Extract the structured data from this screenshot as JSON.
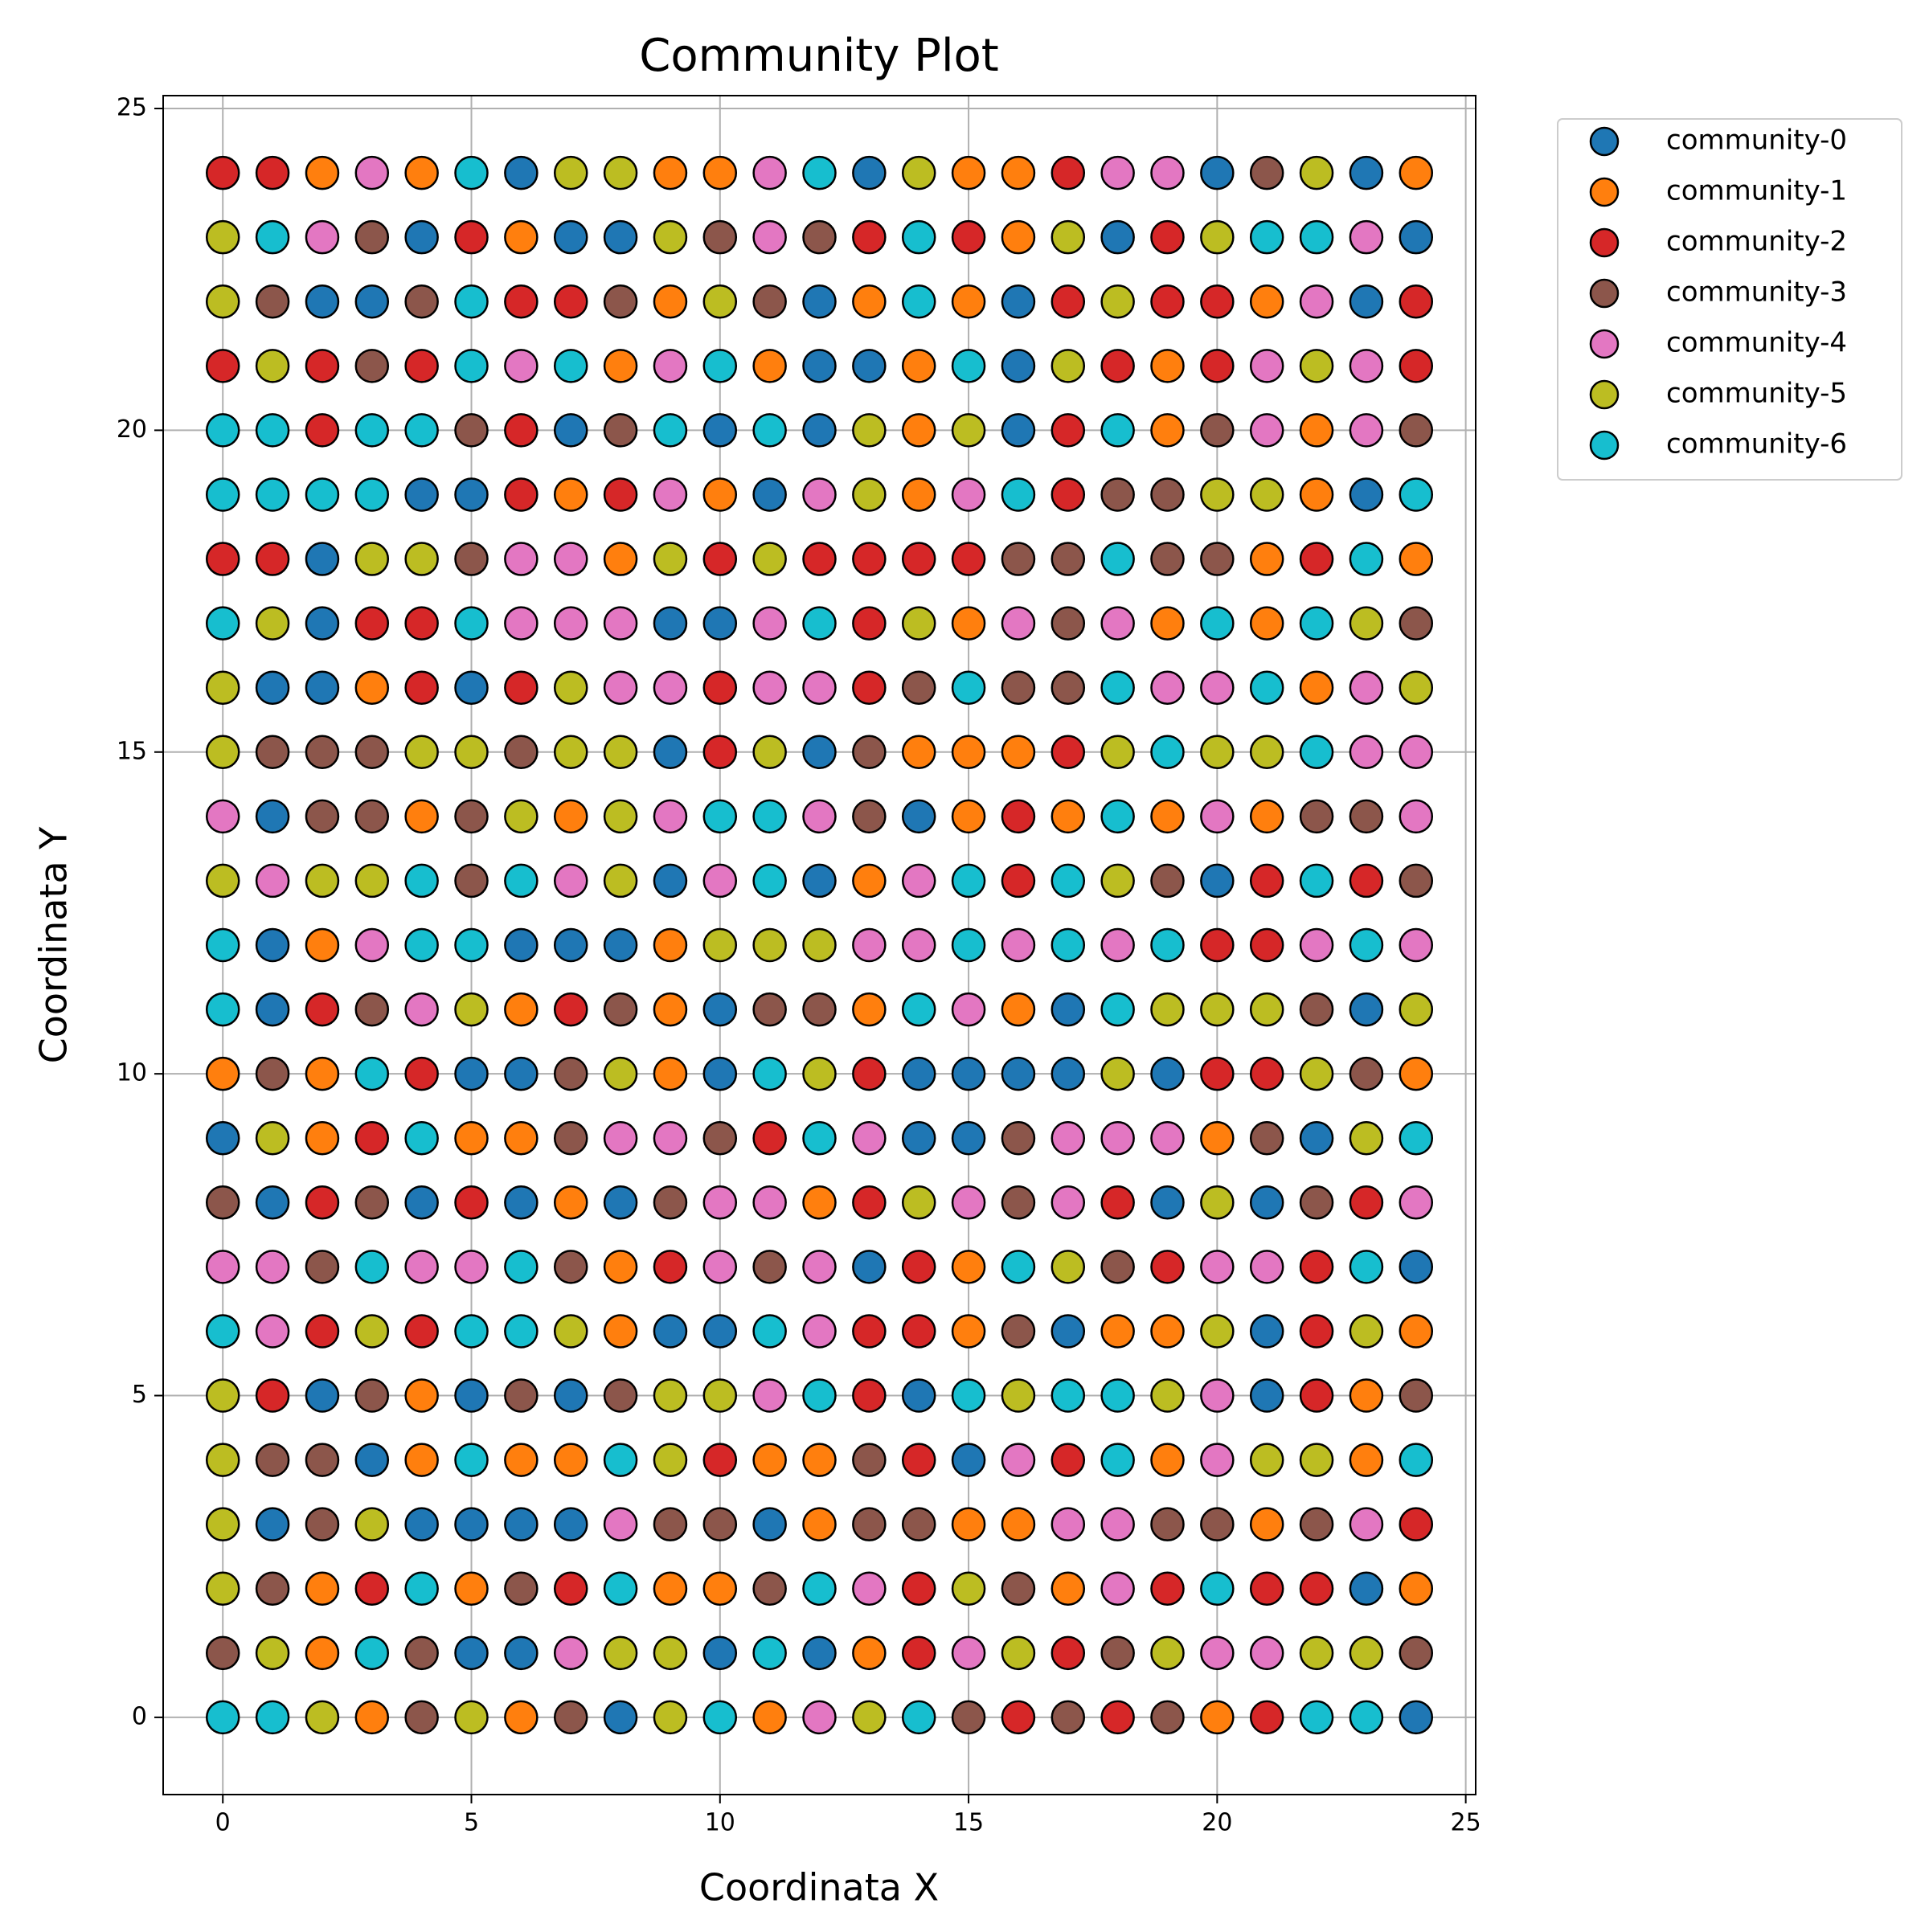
{
  "chart_data": {
    "type": "scatter",
    "title": "Community Plot",
    "x_label": "Coordinata X",
    "y_label": "Coordinata Y",
    "xlim": [
      -1.2,
      25.2
    ],
    "ylim": [
      -1.2,
      25.2
    ],
    "xticks": [
      0,
      5,
      10,
      15,
      20,
      25
    ],
    "yticks": [
      0,
      5,
      10,
      15,
      20,
      25
    ],
    "grid": true,
    "legend": "outside-upper-right",
    "series": [
      {
        "name": "community-0",
        "color": "#1f77b4",
        "x": [
          6,
          13,
          20,
          23,
          4,
          7,
          8,
          18,
          24,
          2,
          3,
          12,
          16,
          23,
          12,
          13,
          16,
          7,
          10,
          12,
          16,
          4,
          5,
          11,
          23,
          2,
          2,
          9,
          10,
          1,
          2,
          5,
          9,
          12,
          1,
          14,
          9,
          12,
          20,
          1,
          6,
          7,
          8,
          1,
          10,
          17,
          23,
          5,
          6,
          10,
          14,
          15,
          16,
          17,
          19,
          0,
          14,
          15,
          22,
          1,
          4,
          6,
          8,
          19,
          21,
          13,
          24,
          9,
          10,
          17,
          21,
          2,
          5,
          7,
          14,
          21,
          3,
          15,
          1,
          4,
          5,
          6,
          7,
          11,
          23,
          5,
          6,
          10,
          12,
          8,
          24
        ],
        "values": [
          24,
          24,
          24,
          24,
          23,
          23,
          23,
          23,
          23,
          22,
          22,
          22,
          22,
          22,
          21,
          21,
          21,
          20,
          20,
          20,
          20,
          19,
          19,
          19,
          19,
          18,
          17,
          17,
          17,
          16,
          16,
          16,
          15,
          15,
          14,
          14,
          13,
          13,
          13,
          12,
          12,
          12,
          12,
          11,
          11,
          11,
          11,
          10,
          10,
          10,
          10,
          10,
          10,
          10,
          10,
          9,
          9,
          9,
          9,
          8,
          8,
          8,
          8,
          8,
          8,
          7,
          7,
          6,
          6,
          6,
          6,
          5,
          5,
          5,
          5,
          5,
          4,
          4,
          3,
          3,
          3,
          3,
          3,
          3,
          2,
          1,
          1,
          1,
          1,
          0,
          0
        ]
      },
      {
        "name": "community-1",
        "color": "#ff7f0e",
        "x": [
          2,
          4,
          9,
          10,
          15,
          16,
          24,
          6,
          16,
          9,
          13,
          15,
          21,
          8,
          11,
          14,
          19,
          14,
          19,
          22,
          7,
          10,
          14,
          22,
          8,
          21,
          24,
          15,
          19,
          21,
          3,
          22,
          14,
          15,
          16,
          4,
          7,
          15,
          17,
          19,
          21,
          13,
          2,
          9,
          6,
          9,
          13,
          16,
          0,
          2,
          9,
          24,
          2,
          5,
          6,
          20,
          7,
          12,
          8,
          15,
          8,
          15,
          18,
          19,
          24,
          4,
          23,
          4,
          6,
          7,
          11,
          12,
          19,
          23,
          12,
          15,
          16,
          21,
          2,
          5,
          9,
          10,
          17,
          24,
          2,
          13,
          3,
          6,
          11,
          20
        ],
        "values": [
          24,
          24,
          24,
          24,
          24,
          24,
          24,
          23,
          23,
          22,
          22,
          22,
          22,
          21,
          21,
          21,
          21,
          20,
          20,
          20,
          19,
          19,
          19,
          19,
          18,
          18,
          18,
          17,
          17,
          17,
          16,
          16,
          15,
          15,
          15,
          14,
          14,
          14,
          14,
          14,
          14,
          13,
          12,
          12,
          11,
          11,
          11,
          11,
          10,
          10,
          10,
          10,
          9,
          9,
          9,
          9,
          8,
          8,
          7,
          7,
          6,
          6,
          6,
          6,
          6,
          5,
          5,
          4,
          4,
          4,
          4,
          4,
          4,
          4,
          3,
          3,
          3,
          3,
          2,
          2,
          2,
          2,
          2,
          2,
          1,
          1,
          0,
          0,
          0,
          0
        ]
      },
      {
        "name": "community-2",
        "color": "#d62728",
        "x": [
          0,
          1,
          17,
          5,
          13,
          15,
          19,
          6,
          7,
          17,
          19,
          20,
          24,
          0,
          2,
          4,
          18,
          20,
          24,
          2,
          6,
          17,
          6,
          8,
          17,
          0,
          1,
          10,
          12,
          13,
          14,
          15,
          22,
          3,
          4,
          13,
          4,
          6,
          10,
          13,
          10,
          17,
          16,
          16,
          21,
          23,
          20,
          21,
          2,
          7,
          4,
          13,
          20,
          21,
          3,
          11,
          2,
          5,
          13,
          18,
          23,
          9,
          14,
          19,
          22,
          2,
          4,
          13,
          14,
          22,
          1,
          13,
          22,
          10,
          14,
          17,
          24,
          3,
          7,
          14,
          19,
          21,
          22,
          14,
          17,
          16,
          18,
          21
        ],
        "values": [
          24,
          24,
          24,
          23,
          23,
          23,
          23,
          22,
          22,
          22,
          22,
          22,
          22,
          21,
          21,
          21,
          21,
          21,
          21,
          20,
          20,
          20,
          19,
          19,
          19,
          18,
          18,
          18,
          18,
          18,
          18,
          18,
          18,
          17,
          17,
          17,
          16,
          16,
          16,
          16,
          15,
          15,
          14,
          13,
          13,
          13,
          12,
          12,
          11,
          11,
          10,
          10,
          10,
          10,
          9,
          9,
          8,
          8,
          8,
          8,
          8,
          7,
          7,
          7,
          7,
          6,
          6,
          6,
          6,
          6,
          5,
          5,
          5,
          4,
          4,
          4,
          3,
          2,
          2,
          2,
          2,
          2,
          2,
          1,
          1,
          0,
          0,
          0
        ]
      },
      {
        "name": "community-3",
        "color": "#8c564b",
        "x": [
          21,
          3,
          10,
          12,
          1,
          4,
          8,
          11,
          3,
          5,
          8,
          20,
          24,
          18,
          19,
          5,
          16,
          17,
          19,
          20,
          17,
          24,
          14,
          16,
          17,
          1,
          2,
          3,
          6,
          13,
          2,
          3,
          5,
          13,
          22,
          23,
          5,
          19,
          24,
          3,
          8,
          11,
          12,
          22,
          1,
          7,
          23,
          7,
          10,
          16,
          21,
          0,
          3,
          9,
          16,
          22,
          2,
          7,
          11,
          18,
          16,
          3,
          6,
          8,
          24,
          1,
          2,
          13,
          2,
          9,
          10,
          13,
          14,
          19,
          20,
          22,
          1,
          6,
          11,
          16,
          0,
          4,
          18,
          24,
          4,
          7,
          15,
          17,
          19
        ],
        "values": [
          24,
          23,
          23,
          23,
          22,
          22,
          22,
          22,
          21,
          20,
          20,
          20,
          20,
          19,
          19,
          18,
          18,
          18,
          18,
          18,
          17,
          17,
          16,
          16,
          16,
          15,
          15,
          15,
          15,
          15,
          14,
          14,
          14,
          14,
          14,
          14,
          13,
          13,
          13,
          11,
          11,
          11,
          11,
          11,
          10,
          10,
          10,
          9,
          9,
          9,
          9,
          8,
          8,
          8,
          8,
          8,
          7,
          7,
          7,
          7,
          6,
          5,
          5,
          5,
          5,
          4,
          4,
          4,
          3,
          3,
          3,
          3,
          3,
          3,
          3,
          3,
          2,
          2,
          2,
          2,
          1,
          1,
          1,
          1,
          0,
          0,
          0,
          0,
          0
        ]
      },
      {
        "name": "community-4",
        "color": "#e377c2",
        "x": [
          3,
          11,
          18,
          19,
          2,
          11,
          23,
          22,
          6,
          9,
          21,
          23,
          21,
          23,
          9,
          12,
          15,
          6,
          7,
          6,
          7,
          8,
          11,
          16,
          18,
          8,
          9,
          11,
          12,
          19,
          20,
          23,
          23,
          24,
          0,
          9,
          12,
          20,
          24,
          1,
          7,
          10,
          14,
          3,
          13,
          14,
          16,
          18,
          22,
          24,
          4,
          15,
          8,
          9,
          13,
          17,
          18,
          19,
          10,
          11,
          15,
          17,
          24,
          0,
          1,
          4,
          5,
          10,
          12,
          20,
          21,
          1,
          12,
          11,
          20,
          16,
          20,
          8,
          17,
          18,
          23,
          13,
          18,
          7,
          15,
          20,
          21,
          12
        ],
        "values": [
          24,
          24,
          24,
          24,
          23,
          23,
          23,
          22,
          21,
          21,
          21,
          21,
          20,
          20,
          19,
          19,
          19,
          18,
          18,
          17,
          17,
          17,
          17,
          17,
          17,
          16,
          16,
          16,
          16,
          16,
          16,
          16,
          15,
          15,
          14,
          14,
          14,
          14,
          14,
          13,
          13,
          13,
          13,
          12,
          12,
          12,
          12,
          12,
          12,
          12,
          11,
          11,
          9,
          9,
          9,
          9,
          9,
          9,
          8,
          8,
          8,
          8,
          8,
          7,
          7,
          7,
          7,
          7,
          7,
          7,
          7,
          6,
          6,
          5,
          5,
          4,
          4,
          3,
          3,
          3,
          3,
          2,
          2,
          1,
          1,
          1,
          1,
          0
        ]
      },
      {
        "name": "community-5",
        "color": "#bcbd22",
        "x": [
          7,
          8,
          14,
          22,
          0,
          9,
          17,
          20,
          0,
          10,
          18,
          1,
          17,
          22,
          13,
          15,
          13,
          20,
          21,
          3,
          4,
          9,
          11,
          1,
          14,
          23,
          0,
          7,
          24,
          0,
          4,
          5,
          7,
          8,
          11,
          18,
          20,
          21,
          6,
          8,
          0,
          2,
          3,
          8,
          18,
          10,
          11,
          12,
          5,
          19,
          20,
          21,
          24,
          8,
          12,
          18,
          22,
          1,
          23,
          14,
          20,
          17,
          3,
          7,
          20,
          23,
          0,
          9,
          10,
          16,
          19,
          0,
          9,
          21,
          22,
          0,
          3,
          0,
          15,
          1,
          8,
          9,
          16,
          19,
          22,
          23,
          2,
          5,
          9,
          13
        ],
        "values": [
          24,
          24,
          24,
          24,
          23,
          23,
          23,
          23,
          22,
          22,
          22,
          21,
          21,
          21,
          20,
          20,
          19,
          19,
          19,
          18,
          18,
          18,
          18,
          17,
          17,
          17,
          16,
          16,
          16,
          15,
          15,
          15,
          15,
          15,
          15,
          15,
          15,
          15,
          14,
          14,
          13,
          13,
          13,
          13,
          13,
          12,
          12,
          12,
          11,
          11,
          11,
          11,
          11,
          10,
          10,
          10,
          10,
          9,
          9,
          8,
          8,
          7,
          6,
          6,
          6,
          6,
          5,
          5,
          5,
          5,
          5,
          4,
          4,
          4,
          4,
          3,
          3,
          2,
          2,
          1,
          1,
          1,
          1,
          1,
          1,
          1,
          0,
          0,
          0,
          0
        ]
      },
      {
        "name": "community-6",
        "color": "#17becf",
        "x": [
          5,
          12,
          1,
          14,
          21,
          22,
          5,
          14,
          5,
          7,
          10,
          15,
          0,
          1,
          3,
          4,
          9,
          11,
          18,
          0,
          1,
          2,
          3,
          16,
          24,
          18,
          23,
          0,
          5,
          12,
          20,
          22,
          15,
          18,
          21,
          19,
          22,
          10,
          11,
          18,
          4,
          6,
          11,
          15,
          17,
          22,
          0,
          4,
          5,
          15,
          17,
          19,
          23,
          0,
          14,
          18,
          3,
          11,
          4,
          12,
          24,
          3,
          6,
          16,
          23,
          0,
          5,
          6,
          11,
          12,
          15,
          17,
          18,
          5,
          8,
          18,
          24,
          4,
          8,
          12,
          20,
          3,
          11,
          0,
          1,
          10,
          14,
          22,
          23
        ],
        "values": [
          24,
          24,
          23,
          23,
          23,
          23,
          22,
          22,
          21,
          21,
          21,
          21,
          20,
          20,
          20,
          20,
          20,
          20,
          20,
          19,
          19,
          19,
          19,
          19,
          19,
          18,
          18,
          17,
          17,
          17,
          17,
          17,
          16,
          16,
          16,
          15,
          15,
          14,
          14,
          14,
          13,
          13,
          13,
          13,
          13,
          13,
          12,
          12,
          12,
          12,
          12,
          12,
          12,
          11,
          11,
          11,
          10,
          10,
          9,
          9,
          9,
          7,
          7,
          7,
          7,
          6,
          6,
          6,
          6,
          5,
          5,
          5,
          5,
          4,
          4,
          4,
          4,
          2,
          2,
          2,
          2,
          1,
          1,
          0,
          0,
          0,
          0,
          0,
          0
        ]
      }
    ]
  }
}
